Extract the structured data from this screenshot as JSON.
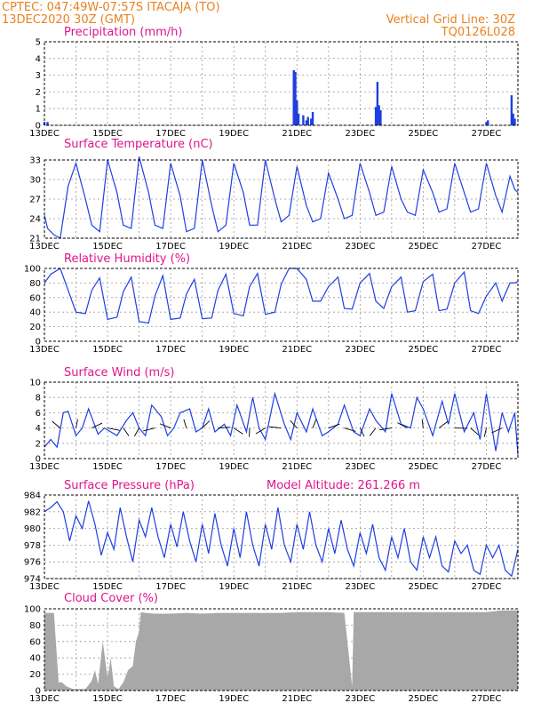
{
  "header": {
    "line1_left": "CPTEC:   047:49W-07:57S   ITACAJA (TO)",
    "line2_left": "13DEC2020 30Z (GMT)",
    "line1_right": "Vertical Grid Line: 30Z",
    "line2_right": "TQ0126L028"
  },
  "x_dates": [
    "13DEC",
    "15DEC",
    "17DEC",
    "19DEC",
    "21DEC",
    "23DEC",
    "25DEC",
    "27DEC"
  ],
  "colors": {
    "header": "#e8821e",
    "title": "#e0148c",
    "line": "#1f3fe0",
    "cloud": "#a8a8a8",
    "frame": "#000000",
    "grid": "#999999"
  },
  "chart_data": [
    {
      "type": "bar",
      "title": "Precipitation (mm/h)",
      "ylim": [
        0,
        5
      ],
      "yticks": [
        "0",
        "1",
        "2",
        "3",
        "4",
        "5"
      ],
      "x_range_days": [
        13,
        28
      ],
      "x": [
        13.0,
        13.1,
        20.9,
        20.95,
        21.0,
        21.05,
        21.2,
        21.3,
        21.35,
        21.45,
        21.5,
        23.5,
        23.55,
        23.6,
        23.65,
        27.0,
        27.05,
        27.8,
        27.85,
        27.9
      ],
      "values": [
        0.2,
        0.2,
        3.3,
        3.2,
        1.5,
        0.7,
        0.6,
        0.3,
        0.5,
        0.4,
        0.8,
        1.1,
        2.6,
        1.2,
        0.9,
        0.2,
        0.3,
        1.8,
        0.7,
        0.4
      ]
    },
    {
      "type": "line",
      "title": "Surface Temperature (nC)",
      "ylim": [
        21,
        33
      ],
      "yticks": [
        "21",
        "24",
        "27",
        "30",
        "33"
      ],
      "x_range_days": [
        13,
        28
      ],
      "x": [
        13.0,
        13.1,
        13.3,
        13.5,
        13.75,
        14.0,
        14.3,
        14.5,
        14.75,
        15.0,
        15.3,
        15.5,
        15.75,
        16.0,
        16.3,
        16.5,
        16.75,
        17.0,
        17.3,
        17.5,
        17.75,
        18.0,
        18.3,
        18.5,
        18.75,
        19.0,
        19.3,
        19.5,
        19.75,
        20.0,
        20.3,
        20.5,
        20.75,
        21.0,
        21.3,
        21.5,
        21.75,
        22.0,
        22.3,
        22.5,
        22.75,
        23.0,
        23.3,
        23.5,
        23.75,
        24.0,
        24.3,
        24.5,
        24.75,
        25.0,
        25.3,
        25.5,
        25.75,
        26.0,
        26.3,
        26.5,
        26.75,
        27.0,
        27.3,
        27.5,
        27.75,
        27.9,
        28.0
      ],
      "values": [
        24.5,
        22.5,
        21.5,
        21.0,
        29.0,
        32.5,
        27.0,
        23.0,
        22.0,
        33.0,
        28.0,
        23.0,
        22.5,
        33.5,
        28.0,
        23.0,
        22.5,
        32.5,
        27.5,
        22.0,
        22.5,
        33.0,
        26.0,
        22.0,
        23.0,
        32.5,
        28.0,
        23.0,
        23.0,
        33.0,
        27.0,
        23.5,
        24.5,
        32.0,
        26.0,
        23.5,
        24.0,
        31.0,
        27.0,
        24.0,
        24.5,
        32.5,
        28.0,
        24.5,
        25.0,
        32.0,
        27.0,
        25.0,
        24.5,
        31.5,
        28.0,
        25.0,
        25.5,
        32.5,
        28.0,
        25.0,
        25.5,
        32.5,
        27.5,
        25.0,
        30.5,
        28.5,
        28.0
      ]
    },
    {
      "type": "line",
      "title": "Relative Humidity (%)",
      "ylim": [
        0,
        100
      ],
      "yticks": [
        "0",
        "20",
        "40",
        "60",
        "80",
        "100"
      ],
      "x_range_days": [
        13,
        28
      ],
      "x": [
        13.0,
        13.2,
        13.5,
        13.75,
        14.0,
        14.3,
        14.5,
        14.75,
        15.0,
        15.3,
        15.5,
        15.75,
        16.0,
        16.3,
        16.5,
        16.75,
        17.0,
        17.3,
        17.5,
        17.75,
        18.0,
        18.3,
        18.5,
        18.75,
        19.0,
        19.3,
        19.5,
        19.75,
        20.0,
        20.3,
        20.5,
        20.75,
        21.0,
        21.3,
        21.5,
        21.75,
        22.0,
        22.3,
        22.5,
        22.75,
        23.0,
        23.3,
        23.5,
        23.75,
        24.0,
        24.3,
        24.5,
        24.75,
        25.0,
        25.3,
        25.5,
        25.75,
        26.0,
        26.3,
        26.5,
        26.75,
        27.0,
        27.3,
        27.5,
        27.75,
        27.9,
        28.0
      ],
      "values": [
        80,
        92,
        100,
        70,
        40,
        38,
        70,
        87,
        30,
        33,
        68,
        88,
        27,
        25,
        62,
        90,
        30,
        32,
        65,
        85,
        31,
        32,
        70,
        92,
        38,
        35,
        75,
        93,
        37,
        40,
        78,
        100,
        100,
        85,
        55,
        55,
        75,
        88,
        45,
        44,
        80,
        93,
        55,
        45,
        75,
        88,
        40,
        42,
        82,
        92,
        42,
        44,
        80,
        95,
        42,
        38,
        62,
        80,
        55,
        80,
        80,
        82
      ]
    },
    {
      "type": "line",
      "title": "Surface Wind (m/s)",
      "ylim": [
        0,
        10
      ],
      "yticks": [
        "0",
        "2",
        "4",
        "6",
        "8",
        "10"
      ],
      "x_range_days": [
        13,
        28
      ],
      "x": [
        13.0,
        13.2,
        13.4,
        13.6,
        13.75,
        14.0,
        14.2,
        14.4,
        14.7,
        14.9,
        15.1,
        15.3,
        15.6,
        15.8,
        16.0,
        16.2,
        16.4,
        16.7,
        16.9,
        17.1,
        17.3,
        17.6,
        17.8,
        18.0,
        18.2,
        18.4,
        18.7,
        18.9,
        19.1,
        19.4,
        19.6,
        19.8,
        20.0,
        20.3,
        20.6,
        20.8,
        21.0,
        21.3,
        21.5,
        21.8,
        22.0,
        22.3,
        22.5,
        22.8,
        23.0,
        23.3,
        23.5,
        23.8,
        24.0,
        24.3,
        24.6,
        24.8,
        25.0,
        25.3,
        25.6,
        25.8,
        26.0,
        26.3,
        26.6,
        26.8,
        27.0,
        27.3,
        27.5,
        27.7,
        27.9,
        28.0
      ],
      "values": [
        1.5,
        2.5,
        1.5,
        6.0,
        6.2,
        3.0,
        4.0,
        6.5,
        3.2,
        4.0,
        3.5,
        3.0,
        5.0,
        6.0,
        4.0,
        3.0,
        7.0,
        5.5,
        3.0,
        4.0,
        6.0,
        6.5,
        3.5,
        4.0,
        6.5,
        3.5,
        4.5,
        3.0,
        7.0,
        3.5,
        8.0,
        4.0,
        2.5,
        8.5,
        4.5,
        2.5,
        6.0,
        3.5,
        6.5,
        3.0,
        3.5,
        4.5,
        7.0,
        3.5,
        3.0,
        6.5,
        5.0,
        3.5,
        8.5,
        4.5,
        4.0,
        8.0,
        6.5,
        3.0,
        7.5,
        4.5,
        8.5,
        3.5,
        6.0,
        2.5,
        8.5,
        1.0,
        6.0,
        3.5,
        6.0,
        0.5
      ]
    },
    {
      "type": "line",
      "title": "Surface Pressure (hPa)",
      "annotation": "Model Altitude: 261.266 m",
      "ylim": [
        974,
        984
      ],
      "yticks": [
        "974",
        "976",
        "978",
        "980",
        "982",
        "984"
      ],
      "x_range_days": [
        13,
        28
      ],
      "x": [
        13.0,
        13.2,
        13.4,
        13.6,
        13.8,
        14.0,
        14.2,
        14.4,
        14.6,
        14.8,
        15.0,
        15.2,
        15.4,
        15.6,
        15.8,
        16.0,
        16.2,
        16.4,
        16.6,
        16.8,
        17.0,
        17.2,
        17.4,
        17.6,
        17.8,
        18.0,
        18.2,
        18.4,
        18.6,
        18.8,
        19.0,
        19.2,
        19.4,
        19.6,
        19.8,
        20.0,
        20.2,
        20.4,
        20.6,
        20.8,
        21.0,
        21.2,
        21.4,
        21.6,
        21.8,
        22.0,
        22.2,
        22.4,
        22.6,
        22.8,
        23.0,
        23.2,
        23.4,
        23.6,
        23.8,
        24.0,
        24.2,
        24.4,
        24.6,
        24.8,
        25.0,
        25.2,
        25.4,
        25.6,
        25.8,
        26.0,
        26.2,
        26.4,
        26.6,
        26.8,
        27.0,
        27.2,
        27.4,
        27.6,
        27.8,
        28.0
      ],
      "values": [
        982.0,
        982.5,
        983.2,
        982.0,
        978.5,
        981.5,
        980.0,
        983.3,
        980.5,
        976.8,
        979.5,
        977.5,
        982.5,
        979.0,
        976.0,
        981.0,
        979.0,
        982.5,
        979.0,
        976.5,
        980.5,
        977.8,
        982.0,
        978.5,
        976.0,
        980.5,
        977.0,
        981.8,
        978.0,
        975.5,
        980.0,
        976.5,
        982.0,
        978.0,
        975.5,
        980.5,
        977.5,
        982.5,
        978.0,
        976.0,
        980.5,
        977.5,
        982.0,
        978.0,
        976.0,
        980.0,
        977.0,
        981.0,
        977.5,
        975.5,
        979.5,
        977.0,
        980.5,
        976.5,
        975.0,
        979.0,
        976.5,
        980.0,
        976.0,
        975.0,
        979.0,
        976.5,
        979.0,
        975.5,
        974.8,
        978.5,
        977.0,
        978.0,
        975.0,
        974.5,
        978.0,
        976.5,
        978.0,
        975.0,
        974.3,
        977.5
      ]
    },
    {
      "type": "bar",
      "title": "Cloud Cover (%)",
      "ylim": [
        0,
        100
      ],
      "yticks": [
        "0",
        "20",
        "40",
        "60",
        "80",
        "100"
      ],
      "x_range_days": [
        13,
        28
      ],
      "x": [
        13.0,
        13.3,
        13.45,
        13.55,
        13.7,
        13.9,
        14.1,
        14.3,
        14.5,
        14.6,
        14.7,
        14.85,
        15.0,
        15.1,
        15.2,
        15.35,
        15.5,
        15.65,
        15.8,
        15.9,
        16.0,
        16.05,
        16.2,
        16.5,
        17.0,
        17.5,
        18.0,
        18.5,
        19.0,
        19.5,
        20.0,
        20.5,
        21.0,
        21.5,
        22.0,
        22.5,
        22.75,
        22.8,
        23.0,
        23.5,
        24.0,
        24.5,
        25.0,
        25.5,
        26.0,
        26.5,
        27.0,
        27.5,
        28.0
      ],
      "values": [
        95,
        95,
        10,
        10,
        5,
        2,
        2,
        2,
        12,
        25,
        8,
        60,
        15,
        40,
        5,
        2,
        10,
        25,
        30,
        60,
        72,
        96,
        95,
        94,
        94,
        95,
        94,
        95,
        95,
        95,
        95,
        95,
        96,
        96,
        96,
        95,
        5,
        96,
        96,
        96,
        96,
        96,
        96,
        96,
        96,
        96,
        96,
        98,
        98
      ]
    }
  ]
}
